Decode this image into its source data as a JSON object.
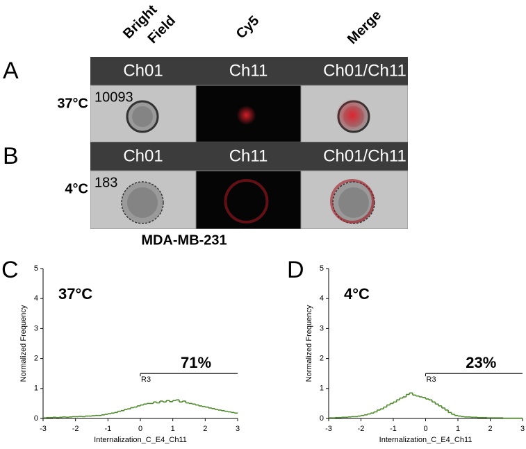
{
  "figure": {
    "column_headers": [
      [
        "Bright",
        "Field"
      ],
      [
        "Cy5"
      ],
      [
        "Merge"
      ]
    ],
    "rows": [
      {
        "panel_label": "A",
        "condition": "37°C",
        "object_id": "10093",
        "channels": [
          "Ch01",
          "Ch11",
          "Ch01/Ch11"
        ]
      },
      {
        "panel_label": "B",
        "condition": "4°C",
        "object_id": "183",
        "channels": [
          "Ch01",
          "Ch11",
          "Ch01/Ch11"
        ]
      }
    ],
    "cell_line": "MDA-MB-231"
  },
  "chart_data": [
    {
      "type": "histogram",
      "panel_label": "C",
      "title": "37°C",
      "xlabel": "Internalization_C_E4_Ch11",
      "ylabel": "Normalized Frequency",
      "bins": [
        -3,
        -2.9,
        -2.8,
        -2.7,
        -2.6,
        -2.5,
        -2.4,
        -2.3,
        -2.2,
        -2.1,
        -2,
        -1.9,
        -1.8,
        -1.7,
        -1.6,
        -1.5,
        -1.4,
        -1.3,
        -1.2,
        -1.1,
        -1,
        -0.9,
        -0.8,
        -0.7,
        -0.6,
        -0.5,
        -0.4,
        -0.3,
        -0.2,
        -0.1,
        0,
        0.1,
        0.2,
        0.3,
        0.4,
        0.5,
        0.6,
        0.7,
        0.8,
        0.9,
        1,
        1.1,
        1.2,
        1.3,
        1.4,
        1.5,
        1.6,
        1.7,
        1.8,
        1.9,
        2,
        2.1,
        2.2,
        2.3,
        2.4,
        2.5,
        2.6,
        2.7,
        2.8,
        2.9,
        3
      ],
      "values": [
        0.02,
        0.03,
        0.03,
        0.04,
        0.03,
        0.04,
        0.05,
        0.04,
        0.05,
        0.06,
        0.06,
        0.07,
        0.06,
        0.08,
        0.08,
        0.09,
        0.1,
        0.1,
        0.12,
        0.14,
        0.16,
        0.18,
        0.2,
        0.24,
        0.26,
        0.3,
        0.32,
        0.36,
        0.38,
        0.42,
        0.45,
        0.48,
        0.5,
        0.5,
        0.55,
        0.52,
        0.58,
        0.55,
        0.6,
        0.56,
        0.6,
        0.62,
        0.55,
        0.58,
        0.52,
        0.5,
        0.48,
        0.45,
        0.42,
        0.4,
        0.38,
        0.35,
        0.33,
        0.3,
        0.28,
        0.26,
        0.24,
        0.22,
        0.2,
        0.18
      ],
      "color": "#4d8a2a",
      "xlim": [
        -3,
        3
      ],
      "ylim": [
        0,
        5
      ],
      "xticks": [
        -3,
        -2,
        -1,
        0,
        1,
        2,
        3
      ],
      "yticks": [
        0,
        1,
        2,
        3,
        4,
        5
      ],
      "gate": {
        "name": "R3",
        "x": [
          0,
          3
        ],
        "y": 1.5,
        "percent_label": "71%"
      }
    },
    {
      "type": "histogram",
      "panel_label": "D",
      "title": "4°C",
      "xlabel": "Internalization_C_E4_Ch11",
      "ylabel": "Normalized Frequency",
      "bins": [
        -3,
        -2.9,
        -2.8,
        -2.7,
        -2.6,
        -2.5,
        -2.4,
        -2.3,
        -2.2,
        -2.1,
        -2,
        -1.9,
        -1.8,
        -1.7,
        -1.6,
        -1.5,
        -1.4,
        -1.3,
        -1.2,
        -1.1,
        -1,
        -0.9,
        -0.8,
        -0.7,
        -0.6,
        -0.5,
        -0.4,
        -0.3,
        -0.2,
        -0.1,
        0,
        0.1,
        0.2,
        0.3,
        0.4,
        0.5,
        0.6,
        0.7,
        0.8,
        0.9,
        1,
        1.1,
        1.2,
        1.3,
        1.4,
        1.5,
        1.6,
        1.7,
        1.8,
        1.9,
        2,
        2.1,
        2.2,
        2.3,
        2.4,
        2.5,
        2.6,
        2.7,
        2.8,
        2.9,
        3
      ],
      "values": [
        0.02,
        0.02,
        0.03,
        0.03,
        0.04,
        0.04,
        0.05,
        0.06,
        0.06,
        0.08,
        0.1,
        0.12,
        0.15,
        0.18,
        0.22,
        0.28,
        0.32,
        0.38,
        0.45,
        0.5,
        0.55,
        0.62,
        0.68,
        0.72,
        0.8,
        0.85,
        0.78,
        0.75,
        0.72,
        0.7,
        0.65,
        0.62,
        0.55,
        0.48,
        0.42,
        0.35,
        0.28,
        0.2,
        0.14,
        0.1,
        0.08,
        0.06,
        0.05,
        0.05,
        0.04,
        0.04,
        0.03,
        0.03,
        0.03,
        0.02,
        0.02,
        0.02,
        0.02,
        0.02,
        0.01,
        0.01,
        0.01,
        0.01,
        0.01,
        0.01
      ],
      "color": "#4d8a2a",
      "xlim": [
        -3,
        3
      ],
      "ylim": [
        0,
        5
      ],
      "xticks": [
        -3,
        -2,
        -1,
        0,
        1,
        2,
        3
      ],
      "yticks": [
        0,
        1,
        2,
        3,
        4,
        5
      ],
      "gate": {
        "name": "R3",
        "x": [
          0,
          3
        ],
        "y": 1.5,
        "percent_label": "23%"
      }
    }
  ]
}
